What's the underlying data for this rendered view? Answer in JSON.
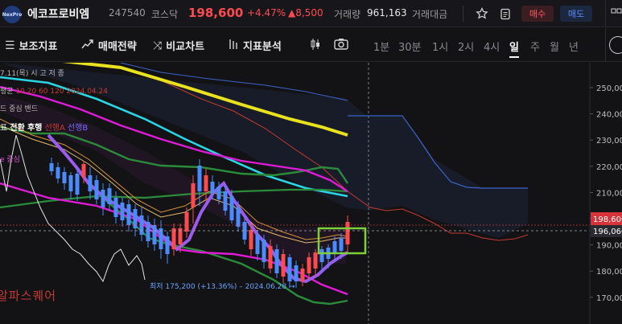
{
  "header": {
    "logo_text": "NexPro",
    "stock_name": "에코프로비엠",
    "stock_code": "247540",
    "market": "코스닥",
    "price": "198,600",
    "change_rate": "+4.47%",
    "change_amount": "▲8,500",
    "volume_label": "거래량",
    "volume": "961,163",
    "amount_label": "거래대금",
    "buy_label": "매수",
    "sell_label": "매도",
    "icons": [
      "star-icon",
      "clipboard-icon",
      "grid-icon"
    ]
  },
  "toolbar": {
    "tools": [
      {
        "icon": "menu-icon",
        "label": "보조지표"
      },
      {
        "icon": "trade-strategy-icon",
        "label": "매매전략"
      },
      {
        "icon": "shuffle-icon",
        "label": "비교차트"
      },
      {
        "icon": "analysis-icon",
        "label": "지표분석"
      },
      {
        "icon": "candle-icon",
        "label": ""
      },
      {
        "icon": "camera-icon",
        "label": ""
      }
    ],
    "timeframes": [
      "1분",
      "30분",
      "1시",
      "2시",
      "4시",
      "일",
      "주",
      "월",
      "년"
    ],
    "active_timeframe": "일"
  },
  "legends": {
    "date_line": "7.11(목)  시  고  저  종",
    "ma_line_prefix": "평균",
    "ma_line_values": "10 20 60 120",
    "ma_line_date": "2024.04.24",
    "band_line": "드  중심  밴드",
    "ichimoku_line_prefix": "표",
    "ichimoku_line_items": [
      "전환",
      "후행",
      "선행A",
      "선행B"
    ],
    "bottom_line": "e  중심",
    "watermark": "알파스퀘어"
  },
  "annotations": {
    "low_marker": "최저 175,200 (+13.36%) – 2024.06.28 →"
  },
  "axis": {
    "ticks": [
      "250,000",
      "240,000",
      "230,000",
      "220,000",
      "210,000",
      "200,000",
      "190,000",
      "180,000",
      "170,000"
    ],
    "current_price_tag": "198,600",
    "crosshair_price_tag": "196,060"
  },
  "colors": {
    "up": "#ff4b50",
    "down": "#4a8cff",
    "ma_yellow": "#e9e21f",
    "ma_cyan": "#29d6e6",
    "bb_green": "#2a8c3a",
    "ichimoku_magenta": "#e01ad8",
    "highlight_box": "#7dd03a"
  }
}
